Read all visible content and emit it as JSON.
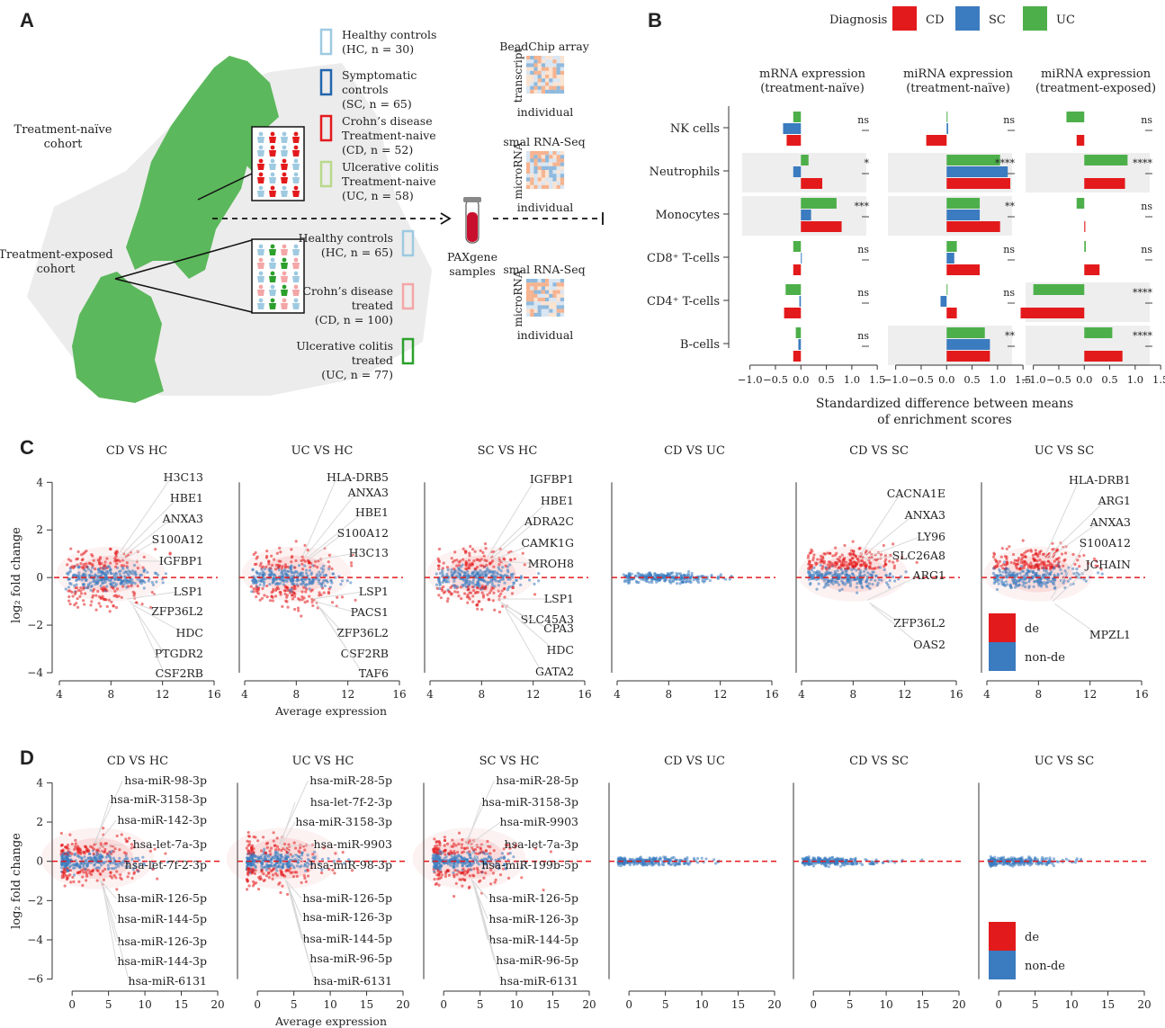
{
  "panel_labels": {
    "A": "A",
    "B": "B",
    "C": "C",
    "D": "D"
  },
  "panelA": {
    "cohort_naive": [
      "Treatment-naïve",
      "cohort"
    ],
    "cohort_exposed": [
      "Treatment-exposed",
      "cohort"
    ],
    "legend_naive": [
      {
        "lines": [
          "Healthy controls",
          "(HC, n = 30)"
        ],
        "color": "#9ecae1"
      },
      {
        "lines": [
          "Symptomatic",
          "controls",
          "(SC, n = 65)"
        ],
        "color": "#2166ac"
      },
      {
        "lines": [
          "Crohn’s disease",
          "Treatment-naive",
          "(CD, n = 52)"
        ],
        "color": "#e31a1c"
      },
      {
        "lines": [
          "Ulcerative colitis",
          "Treatment-naive",
          "(UC, n = 58)"
        ],
        "color": "#b8d98a"
      }
    ],
    "legend_exposed": [
      {
        "lines": [
          "Healthy controls",
          "(HC, n = 65)"
        ],
        "color": "#9ecae1"
      },
      {
        "lines": [
          "Crohn’s disease",
          "treated",
          "(CD, n = 100)"
        ],
        "color": "#f4a6a6"
      },
      {
        "lines": [
          "Ulcerative colitis",
          "treated",
          "(UC, n = 77)"
        ],
        "color": "#2ca02c"
      }
    ],
    "samples": [
      "PAXgene",
      "samples"
    ],
    "heatmaps": [
      {
        "title": "BeadChip array",
        "ylab": "transcript",
        "xlab": "individual"
      },
      {
        "title": "smal RNA-Seq",
        "ylab": "microRNA",
        "xlab": "individual"
      },
      {
        "title": "smal RNA-Seq",
        "ylab": "microRNA",
        "xlab": "individual"
      }
    ]
  },
  "colors": {
    "CD": "#e31a1c",
    "SC": "#3b7bbf",
    "UC": "#4daf4a",
    "de": "#e31a1c",
    "nonde": "#3b7bbf",
    "map": "#5cb85c"
  },
  "chart_data": [
    {
      "id": "B",
      "type": "bar",
      "legend_title": "Diagnosis",
      "legend": [
        "CD",
        "SC",
        "UC"
      ],
      "categories_html": [
        "NK cells",
        "Neutrophils",
        "Monocytes",
        "CD8⁺ T-cells",
        "CD4⁺ T-cells",
        "B-cells"
      ],
      "xlabel": [
        "Standardized difference between means",
        "of enrichment scores"
      ],
      "xlim": [
        -1.1,
        1.55
      ],
      "xticks": [
        "−1.0",
        "−0.5",
        "0.0",
        "0.5",
        "1.0",
        "1.5"
      ],
      "panels": [
        {
          "title": [
            "mRNA expression",
            "(treatment-naïve)"
          ],
          "UC": [
            -0.15,
            0.15,
            0.7,
            -0.15,
            -0.3,
            -0.1
          ],
          "SC": [
            -0.35,
            -0.15,
            0.2,
            0.0,
            -0.03,
            -0.05
          ],
          "CD": [
            -0.28,
            0.42,
            0.8,
            -0.15,
            -0.33,
            -0.15
          ],
          "sig": [
            "ns",
            "*",
            "***",
            "ns",
            "ns",
            "ns"
          ],
          "shade": [
            false,
            true,
            true,
            false,
            false,
            false
          ]
        },
        {
          "title": [
            "miRNA expression",
            "(treatment-naïve)"
          ],
          "UC": [
            0.0,
            1.05,
            0.65,
            0.2,
            0.0,
            0.75
          ],
          "SC": [
            0.03,
            1.2,
            0.65,
            0.15,
            -0.12,
            0.85
          ],
          "CD": [
            -0.4,
            1.25,
            1.05,
            0.65,
            0.2,
            0.85
          ],
          "sig": [
            "ns",
            "****",
            "**",
            "ns",
            "ns",
            "**"
          ],
          "shade": [
            false,
            true,
            true,
            false,
            false,
            true
          ]
        },
        {
          "title": [
            "miRNA expression",
            "(treatment-exposed)"
          ],
          "UC": [
            -0.35,
            0.85,
            -0.15,
            0.03,
            -1.0,
            0.55
          ],
          "SC": [
            0,
            0,
            0,
            0,
            0,
            0
          ],
          "CD": [
            -0.15,
            0.8,
            0.02,
            0.3,
            -1.25,
            0.75
          ],
          "sig": [
            "ns",
            "****",
            "ns",
            "ns",
            "****",
            "****"
          ],
          "shade": [
            false,
            true,
            false,
            false,
            true,
            true
          ]
        }
      ]
    },
    {
      "id": "C",
      "type": "scatter",
      "xlabel": "Average expression",
      "ylabel": "log₂ fold change",
      "xlim": [
        4,
        16
      ],
      "ylim": [
        -4,
        4.2
      ],
      "xticks": [
        4,
        8,
        12,
        16
      ],
      "yticks": [
        -4,
        -2,
        0,
        2,
        4
      ],
      "legend": [
        "de",
        "non-de"
      ],
      "panels": [
        {
          "title": "CD VS HC",
          "labels": [
            "H3C13",
            "HBE1",
            "ANXA3",
            "S100A12",
            "IGFBP1",
            "LSP1",
            "ZFP36L2",
            "HDC",
            "PTGDR2",
            "CSF2RB"
          ]
        },
        {
          "title": "UC VS HC",
          "labels": [
            "HLA-DRB5",
            "ANXA3",
            "HBE1",
            "S100A12",
            "H3C13",
            "LSP1",
            "PACS1",
            "ZFP36L2",
            "CSF2RB",
            "TAF6"
          ]
        },
        {
          "title": "SC VS HC",
          "labels": [
            "IGFBP1",
            "HBE1",
            "ADRA2C",
            "CAMK1G",
            "MROH8",
            "LSP1",
            "SLC45A3",
            "CPA3",
            "HDC",
            "GATA2"
          ]
        },
        {
          "title": "CD VS UC",
          "labels": []
        },
        {
          "title": "CD VS SC",
          "labels": [
            "CACNA1E",
            "ANXA3",
            "LY96",
            "SLC26A8",
            "ARG1",
            "ZFP36L2",
            "OAS2"
          ]
        },
        {
          "title": "UC VS SC",
          "labels": [
            "HLA-DRB1",
            "ARG1",
            "ANXA3",
            "S100A12",
            "JCHAIN",
            "MPZL1"
          ]
        }
      ]
    },
    {
      "id": "D",
      "type": "scatter",
      "xlabel": "Average expression",
      "ylabel": "log₂ fold change",
      "xlim": [
        -2,
        20
      ],
      "ylim": [
        -6.2,
        4.2
      ],
      "xticks": [
        0,
        5,
        10,
        15,
        20
      ],
      "yticks": [
        -6,
        -4,
        -2,
        0,
        2,
        4
      ],
      "legend": [
        "de",
        "non-de"
      ],
      "panels": [
        {
          "title": "CD VS HC",
          "labels": [
            "hsa-miR-98-3p",
            "hsa-miR-3158-3p",
            "hsa-miR-142-3p",
            "hsa-let-7a-3p",
            "hsa-let-7f-2-3p",
            "hsa-miR-126-5p",
            "hsa-miR-144-5p",
            "hsa-miR-126-3p",
            "hsa-miR-144-3p",
            "hsa-miR-6131"
          ]
        },
        {
          "title": "UC VS HC",
          "labels": [
            "hsa-miR-28-5p",
            "hsa-let-7f-2-3p",
            "hsa-miR-3158-3p",
            "hsa-miR-9903",
            "hsa-miR-98-3p",
            "hsa-miR-126-5p",
            "hsa-miR-126-3p",
            "hsa-miR-144-5p",
            "hsa-miR-96-5p",
            "hsa-miR-6131"
          ]
        },
        {
          "title": "SC VS HC",
          "labels": [
            "hsa-miR-28-5p",
            "hsa-miR-3158-3p",
            "hsa-miR-9903",
            "hsa-let-7a-3p",
            "hsa-miR-199b-5p",
            "hsa-miR-126-5p",
            "hsa-miR-126-3p",
            "hsa-miR-144-5p",
            "hsa-miR-96-5p",
            "hsa-miR-6131"
          ]
        },
        {
          "title": "CD VS UC",
          "labels": []
        },
        {
          "title": "CD VS SC",
          "labels": []
        },
        {
          "title": "UC VS SC",
          "labels": []
        }
      ]
    }
  ]
}
